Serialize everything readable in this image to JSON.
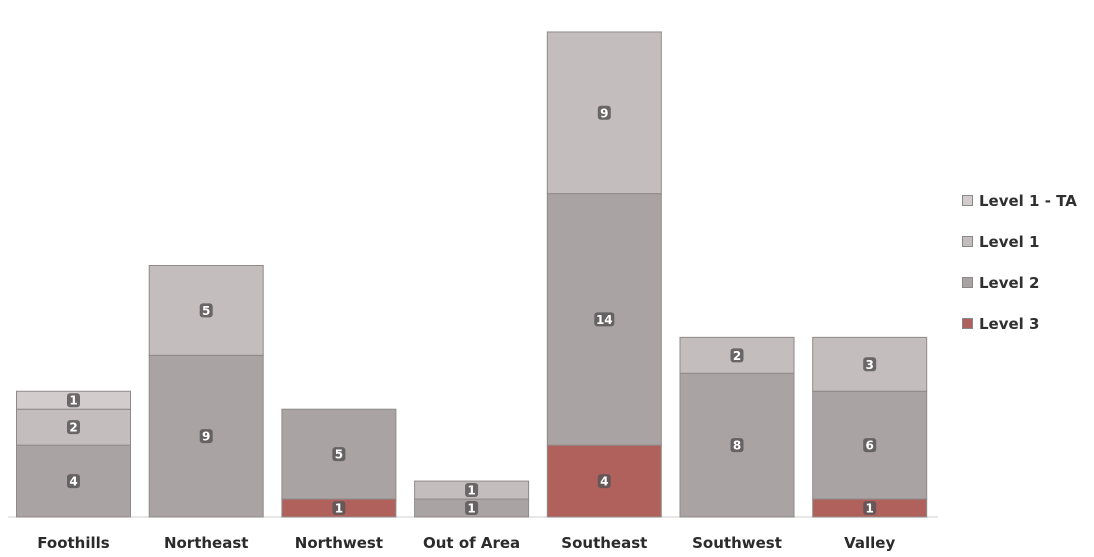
{
  "chart_data": {
    "type": "bar",
    "stacked": true,
    "categories": [
      "Foothills",
      "Northeast",
      "Northwest",
      "Out of Area",
      "Southeast",
      "Southwest",
      "Valley"
    ],
    "series": [
      {
        "name": "Level 3",
        "values": [
          0,
          0,
          1,
          0,
          4,
          0,
          1
        ]
      },
      {
        "name": "Level 2",
        "values": [
          4,
          9,
          5,
          1,
          14,
          8,
          6
        ]
      },
      {
        "name": "Level 1",
        "values": [
          2,
          5,
          0,
          1,
          9,
          2,
          3
        ]
      },
      {
        "name": "Level 1 - TA",
        "values": [
          1,
          0,
          0,
          0,
          0,
          0,
          0
        ]
      }
    ],
    "legend_order": [
      "Level 1 - TA",
      "Level 1",
      "Level 2",
      "Level 3"
    ],
    "legend_position": "right",
    "ylim": [
      0,
      28
    ],
    "grid": false,
    "colors": {
      "Level 3": "#b0615c",
      "Level 2": "#a9a4a3",
      "Level 1": "#c3bebd",
      "Level 1 - TA": "#d2cdcc"
    }
  }
}
